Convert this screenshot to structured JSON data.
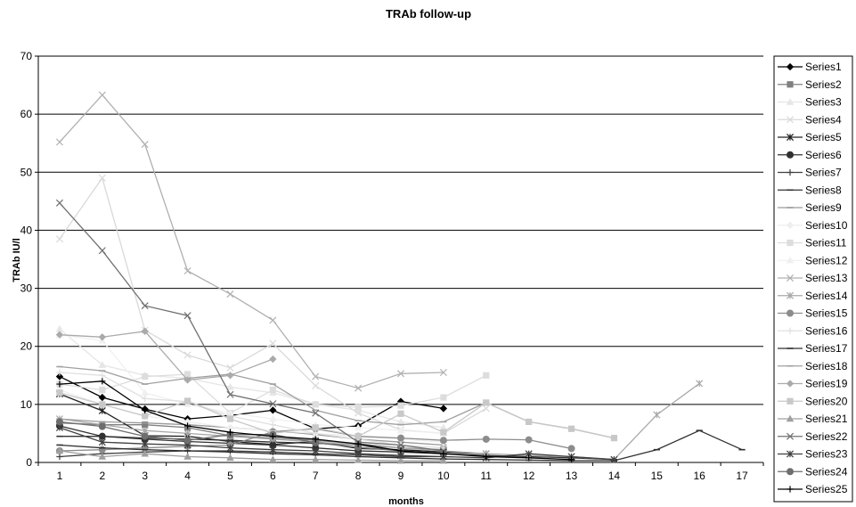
{
  "chart_data": {
    "type": "line",
    "title": "TRAb follow-up",
    "xlabel": "months",
    "ylabel": "TRAb IU/l",
    "xlim": [
      1,
      17
    ],
    "ylim": [
      0,
      70
    ],
    "x_ticks": [
      "1",
      "2",
      "3",
      "4",
      "5",
      "6",
      "7",
      "8",
      "9",
      "10",
      "11",
      "12",
      "13",
      "14",
      "15",
      "16",
      "17"
    ],
    "y_ticks": [
      "0",
      "10",
      "20",
      "30",
      "40",
      "50",
      "60",
      "70"
    ],
    "grid": "horizontal",
    "legend_position": "right",
    "series": [
      {
        "name": "Series1",
        "color": "#000000",
        "marker": "diamond",
        "x": [
          1,
          2,
          3,
          4,
          5,
          6,
          7,
          8,
          9,
          10
        ],
        "y": [
          14.8,
          11.2,
          9.2,
          7.5,
          8.1,
          9.0,
          5.8,
          6.3,
          10.5,
          9.3
        ]
      },
      {
        "name": "Series2",
        "color": "#808080",
        "marker": "square",
        "x": [
          1,
          2,
          3,
          4,
          5,
          6,
          7,
          8,
          9,
          10
        ],
        "y": [
          6.8,
          6.5,
          6.5,
          6.0,
          4.6,
          4.2,
          3.8,
          3.2,
          2.5,
          2.2
        ]
      },
      {
        "name": "Series3",
        "color": "#e6e6e6",
        "marker": "triangle",
        "x": [
          1,
          2,
          3,
          4,
          5,
          6,
          7,
          8,
          9,
          10
        ],
        "y": [
          23.0,
          16.8,
          15.0,
          14.5,
          13.0,
          12.0,
          10.0,
          9.0,
          7.0,
          6.0
        ]
      },
      {
        "name": "Series4",
        "color": "#d9d9d9",
        "marker": "x",
        "x": [
          1,
          2,
          3,
          4,
          5,
          6,
          7,
          8,
          9,
          10,
          11
        ],
        "y": [
          38.5,
          49.0,
          22.8,
          18.5,
          16.3,
          20.5,
          13.2,
          8.5,
          5.6,
          5.0,
          9.3
        ]
      },
      {
        "name": "Series5",
        "color": "#202020",
        "marker": "star",
        "x": [
          1,
          2,
          3,
          4,
          5,
          6,
          7,
          8,
          9,
          10,
          11
        ],
        "y": [
          11.8,
          8.9,
          4.6,
          4.5,
          3.6,
          3.1,
          3.6,
          2.4,
          2.2,
          1.8,
          1.5
        ]
      },
      {
        "name": "Series6",
        "color": "#303030",
        "marker": "circle",
        "x": [
          1,
          2,
          3,
          4,
          5,
          6,
          7,
          8,
          9,
          10
        ],
        "y": [
          6.3,
          4.5,
          4.0,
          3.6,
          3.3,
          3.0,
          2.5,
          2.0,
          1.8,
          1.5
        ]
      },
      {
        "name": "Series7",
        "color": "#404040",
        "marker": "plus",
        "x": [
          1,
          2,
          3,
          4,
          5,
          6,
          7,
          8,
          9,
          10
        ],
        "y": [
          1.0,
          1.5,
          1.8,
          2.0,
          2.0,
          1.8,
          1.5,
          1.3,
          1.0,
          1.0
        ]
      },
      {
        "name": "Series8",
        "color": "#333333",
        "marker": "dash",
        "x": [
          1,
          2,
          3,
          4,
          5,
          6,
          7,
          8,
          9,
          10,
          11,
          12,
          13,
          14
        ],
        "y": [
          4.5,
          4.5,
          4.2,
          4.0,
          3.8,
          3.5,
          3.3,
          3.0,
          2.0,
          1.5,
          1.2,
          1.0,
          0.8,
          0.5
        ]
      },
      {
        "name": "Series9",
        "color": "#9a9a9a",
        "marker": "dash",
        "x": [
          1,
          2,
          3,
          4,
          5,
          6,
          7,
          8,
          9,
          10
        ],
        "y": [
          7.5,
          7.0,
          6.8,
          6.5,
          6.0,
          5.5,
          4.8,
          4.0,
          3.5,
          3.0
        ]
      },
      {
        "name": "Series10",
        "color": "#eeeeee",
        "marker": "diamond",
        "x": [
          1,
          2,
          3,
          4,
          5,
          6,
          7,
          8,
          9,
          10
        ],
        "y": [
          12.5,
          10.0,
          8.0,
          7.0,
          6.0,
          5.5,
          5.0,
          4.5,
          4.0,
          3.5
        ]
      },
      {
        "name": "Series11",
        "color": "#dddddd",
        "marker": "square",
        "x": [
          1,
          2,
          3,
          4,
          5,
          6,
          7,
          8,
          9,
          10,
          11
        ],
        "y": [
          13.5,
          12.5,
          14.8,
          15.2,
          8.5,
          12.5,
          10.0,
          9.5,
          9.8,
          11.2,
          15.0
        ]
      },
      {
        "name": "Series12",
        "color": "#f0f0f0",
        "marker": "triangle",
        "x": [
          1,
          2,
          3,
          4,
          5,
          6,
          7,
          8,
          9,
          10
        ],
        "y": [
          22.0,
          21.0,
          12.0,
          10.0,
          8.5,
          7.5,
          6.5,
          6.0,
          5.5,
          5.0
        ]
      },
      {
        "name": "Series13",
        "color": "#b0b0b0",
        "marker": "x",
        "x": [
          1,
          2,
          3,
          4,
          5,
          6,
          7,
          8,
          9,
          10
        ],
        "y": [
          55.2,
          63.3,
          54.8,
          33.0,
          29.0,
          24.5,
          14.8,
          12.8,
          15.3,
          15.5
        ]
      },
      {
        "name": "Series14",
        "color": "#a8a8a8",
        "marker": "star",
        "x": [
          1,
          2,
          3,
          4,
          5,
          6,
          7,
          8,
          9,
          10,
          11,
          12,
          13,
          14,
          15,
          16
        ],
        "y": [
          7.5,
          6.5,
          5.5,
          5.0,
          4.5,
          4.0,
          3.5,
          3.0,
          2.5,
          2.0,
          1.5,
          1.2,
          1.0,
          0.5,
          8.2,
          13.6
        ]
      },
      {
        "name": "Series15",
        "color": "#8c8c8c",
        "marker": "circle",
        "x": [
          1,
          2,
          3,
          4,
          5,
          6,
          7,
          8,
          9,
          10,
          11,
          12,
          13
        ],
        "y": [
          2.0,
          2.2,
          2.5,
          2.8,
          3.0,
          5.3,
          5.8,
          4.5,
          4.2,
          3.8,
          4.0,
          3.9,
          2.4
        ]
      },
      {
        "name": "Series16",
        "color": "#e0e0e0",
        "marker": "plus",
        "x": [
          1,
          2,
          3,
          4,
          5,
          6,
          7,
          8,
          9,
          10
        ],
        "y": [
          15.5,
          15.0,
          11.0,
          10.5,
          8.0,
          6.5,
          5.0,
          4.0,
          3.0,
          2.5
        ]
      },
      {
        "name": "Series17",
        "color": "#303030",
        "marker": "dash",
        "x": [
          1,
          2,
          3,
          4,
          5,
          6,
          7,
          8,
          9,
          10,
          11,
          12,
          13,
          14,
          15,
          16,
          17
        ],
        "y": [
          3.0,
          2.5,
          2.2,
          2.0,
          1.8,
          1.5,
          1.3,
          1.0,
          0.8,
          0.6,
          0.5,
          0.4,
          0.3,
          0.3,
          2.2,
          5.5,
          2.2
        ]
      },
      {
        "name": "Series18",
        "color": "#a0a0a0",
        "marker": "dash",
        "x": [
          1,
          2,
          3,
          4,
          5,
          6,
          7,
          8,
          9,
          10,
          11,
          12,
          13,
          14
        ],
        "y": [
          16.5,
          15.8,
          13.5,
          14.5,
          15.2,
          13.5,
          9.0,
          7.2,
          6.5,
          7.0,
          10.3,
          7.0,
          5.8,
          4.2
        ]
      },
      {
        "name": "Series19",
        "color": "#aaaaaa",
        "marker": "diamond",
        "x": [
          1,
          2,
          3,
          4,
          5,
          6
        ],
        "y": [
          22.0,
          21.6,
          22.6,
          14.2,
          15.0,
          17.8
        ]
      },
      {
        "name": "Series20",
        "color": "#c8c8c8",
        "marker": "square",
        "x": [
          1,
          2,
          3,
          4,
          5,
          6,
          7,
          8,
          9,
          10,
          11,
          12,
          13,
          14
        ],
        "y": [
          12.0,
          10.0,
          8.0,
          10.6,
          7.5,
          5.0,
          6.0,
          4.5,
          8.4,
          5.2,
          10.3,
          7.0,
          5.8,
          4.2
        ]
      },
      {
        "name": "Series21",
        "color": "#a0a0a0",
        "marker": "triangle",
        "x": [
          1,
          2,
          3,
          4,
          5,
          6,
          7,
          8,
          9,
          10
        ],
        "y": [
          2.0,
          1.0,
          1.5,
          1.0,
          0.8,
          0.5,
          0.5,
          0.4,
          0.3,
          0.3
        ]
      },
      {
        "name": "Series22",
        "color": "#707070",
        "marker": "x",
        "x": [
          1,
          2,
          3,
          4,
          5,
          6,
          7,
          8,
          9,
          10
        ],
        "y": [
          44.7,
          36.5,
          27.0,
          25.3,
          11.7,
          10.1,
          8.5,
          3.5,
          3.0,
          2.0
        ]
      },
      {
        "name": "Series23",
        "color": "#404040",
        "marker": "star",
        "x": [
          1,
          2,
          3,
          4,
          5,
          6,
          7,
          8,
          9,
          10,
          11,
          12,
          13,
          14
        ],
        "y": [
          6.0,
          3.5,
          3.2,
          3.0,
          2.5,
          2.2,
          2.0,
          1.5,
          1.2,
          1.0,
          0.8,
          1.5,
          1.0,
          0.5
        ]
      },
      {
        "name": "Series24",
        "color": "#6e6e6e",
        "marker": "circle",
        "x": [
          1,
          2,
          3,
          4,
          5,
          6,
          7,
          8,
          9,
          10
        ],
        "y": [
          7.0,
          6.2,
          4.5,
          3.8,
          4.8,
          4.8,
          3.4,
          2.6,
          2.0,
          1.6
        ]
      },
      {
        "name": "Series25",
        "color": "#000000",
        "marker": "plus",
        "x": [
          1,
          2,
          3,
          4,
          5,
          6,
          7,
          8,
          9,
          10,
          11,
          12,
          13
        ],
        "y": [
          13.5,
          14.0,
          9.0,
          6.3,
          5.2,
          4.5,
          4.0,
          3.2,
          2.0,
          1.5,
          1.0,
          0.8,
          0.5
        ]
      }
    ]
  }
}
